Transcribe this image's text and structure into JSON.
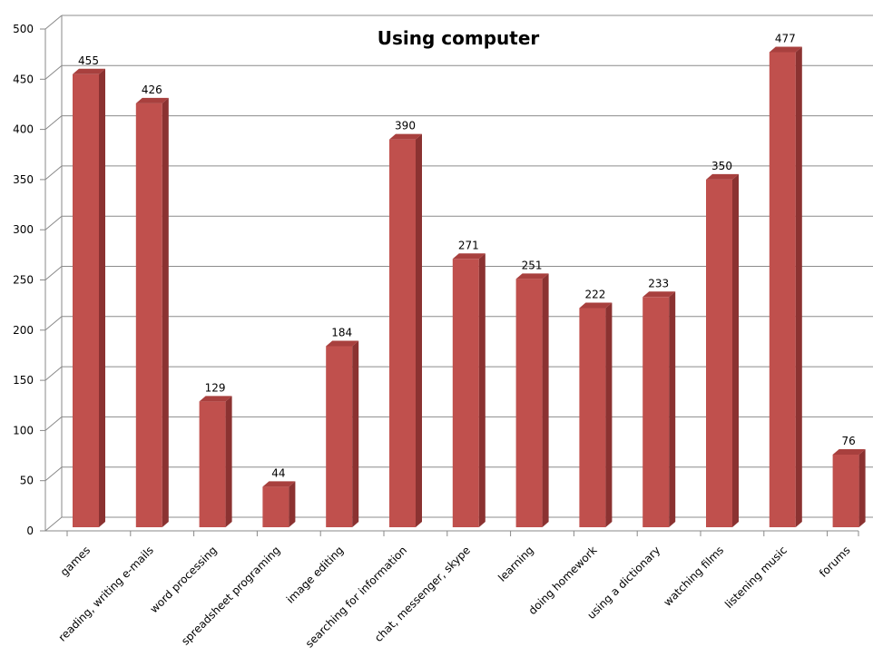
{
  "chart_data": {
    "type": "bar",
    "title": "Using computer",
    "xlabel": "",
    "ylabel": "",
    "ylim": [
      0,
      500
    ],
    "yticks": [
      0,
      50,
      100,
      150,
      200,
      250,
      300,
      350,
      400,
      450,
      500
    ],
    "grid": true,
    "legend": "none",
    "bar_color": "#c0504d",
    "categories": [
      "games",
      "reading, writing e-mails",
      "word processing",
      "spreadsheet programing",
      "image editing",
      "searching for information",
      "chat, messenger, skype",
      "learning",
      "doing homework",
      "using a dictionary",
      "watching films",
      "listening music",
      "forums"
    ],
    "values": [
      455,
      426,
      129,
      44,
      184,
      390,
      271,
      251,
      222,
      233,
      350,
      477,
      76
    ]
  }
}
